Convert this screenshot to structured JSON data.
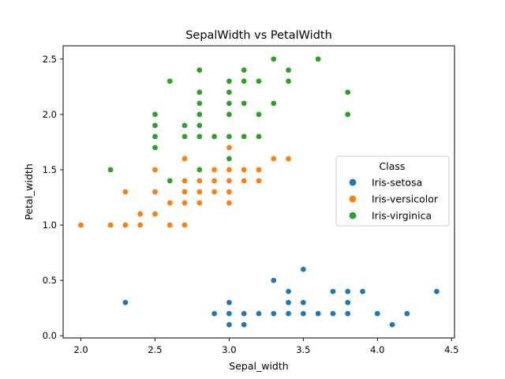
{
  "chart_data": {
    "type": "scatter",
    "title": "SepalWidth vs PetalWidth",
    "xlabel": "Sepal_width",
    "ylabel": "Petal_width",
    "xlim": [
      1.88,
      4.52
    ],
    "ylim": [
      -0.02,
      2.62
    ],
    "xticks": [
      "2.0",
      "2.5",
      "3.0",
      "3.5",
      "4.0",
      "4.5"
    ],
    "yticks": [
      "0.0",
      "0.5",
      "1.0",
      "1.5",
      "2.0",
      "2.5"
    ],
    "legend": {
      "title": "Class",
      "placement": "center-right"
    },
    "series": [
      {
        "name": "Iris-setosa",
        "color": "#1f77b4",
        "points": [
          [
            2.3,
            0.3
          ],
          [
            2.9,
            0.2
          ],
          [
            3.0,
            0.1
          ],
          [
            3.0,
            0.2
          ],
          [
            3.0,
            0.3
          ],
          [
            3.1,
            0.1
          ],
          [
            3.1,
            0.2
          ],
          [
            3.2,
            0.2
          ],
          [
            3.3,
            0.2
          ],
          [
            3.3,
            0.5
          ],
          [
            3.4,
            0.2
          ],
          [
            3.4,
            0.3
          ],
          [
            3.4,
            0.4
          ],
          [
            3.5,
            0.2
          ],
          [
            3.5,
            0.3
          ],
          [
            3.5,
            0.6
          ],
          [
            3.6,
            0.2
          ],
          [
            3.7,
            0.2
          ],
          [
            3.7,
            0.4
          ],
          [
            3.8,
            0.2
          ],
          [
            3.8,
            0.3
          ],
          [
            3.8,
            0.4
          ],
          [
            3.9,
            0.4
          ],
          [
            4.0,
            0.2
          ],
          [
            4.1,
            0.1
          ],
          [
            4.2,
            0.2
          ],
          [
            4.4,
            0.4
          ]
        ]
      },
      {
        "name": "Iris-versicolor",
        "color": "#ff7f0e",
        "points": [
          [
            2.0,
            1.0
          ],
          [
            2.2,
            1.0
          ],
          [
            2.3,
            1.0
          ],
          [
            2.3,
            1.3
          ],
          [
            2.4,
            1.0
          ],
          [
            2.4,
            1.1
          ],
          [
            2.5,
            1.1
          ],
          [
            2.5,
            1.3
          ],
          [
            2.5,
            1.5
          ],
          [
            2.6,
            1.0
          ],
          [
            2.6,
            1.2
          ],
          [
            2.7,
            1.0
          ],
          [
            2.7,
            1.2
          ],
          [
            2.7,
            1.3
          ],
          [
            2.7,
            1.4
          ],
          [
            2.7,
            1.6
          ],
          [
            2.8,
            1.2
          ],
          [
            2.8,
            1.3
          ],
          [
            2.8,
            1.4
          ],
          [
            2.8,
            1.5
          ],
          [
            2.9,
            1.3
          ],
          [
            2.9,
            1.4
          ],
          [
            2.9,
            1.5
          ],
          [
            3.0,
            1.2
          ],
          [
            3.0,
            1.3
          ],
          [
            3.0,
            1.4
          ],
          [
            3.0,
            1.5
          ],
          [
            3.0,
            1.7
          ],
          [
            3.1,
            1.4
          ],
          [
            3.1,
            1.5
          ],
          [
            3.2,
            1.4
          ],
          [
            3.2,
            1.5
          ],
          [
            3.3,
            1.6
          ],
          [
            3.4,
            1.6
          ]
        ]
      },
      {
        "name": "Iris-virginica",
        "color": "#2ca02c",
        "points": [
          [
            2.2,
            1.5
          ],
          [
            2.5,
            1.7
          ],
          [
            2.5,
            1.8
          ],
          [
            2.5,
            1.9
          ],
          [
            2.5,
            2.0
          ],
          [
            2.6,
            1.4
          ],
          [
            2.6,
            2.3
          ],
          [
            2.7,
            1.8
          ],
          [
            2.7,
            1.9
          ],
          [
            2.8,
            1.5
          ],
          [
            2.8,
            1.8
          ],
          [
            2.8,
            1.9
          ],
          [
            2.8,
            2.0
          ],
          [
            2.8,
            2.1
          ],
          [
            2.8,
            2.2
          ],
          [
            2.8,
            2.4
          ],
          [
            2.9,
            1.8
          ],
          [
            3.0,
            1.6
          ],
          [
            3.0,
            1.8
          ],
          [
            3.0,
            2.0
          ],
          [
            3.0,
            2.1
          ],
          [
            3.0,
            2.2
          ],
          [
            3.0,
            2.3
          ],
          [
            3.1,
            1.8
          ],
          [
            3.1,
            2.1
          ],
          [
            3.1,
            2.3
          ],
          [
            3.1,
            2.4
          ],
          [
            3.2,
            1.8
          ],
          [
            3.2,
            2.0
          ],
          [
            3.2,
            2.3
          ],
          [
            3.3,
            2.1
          ],
          [
            3.3,
            2.5
          ],
          [
            3.4,
            2.3
          ],
          [
            3.4,
            2.4
          ],
          [
            3.6,
            2.5
          ],
          [
            3.8,
            2.0
          ],
          [
            3.8,
            2.2
          ]
        ]
      }
    ]
  }
}
